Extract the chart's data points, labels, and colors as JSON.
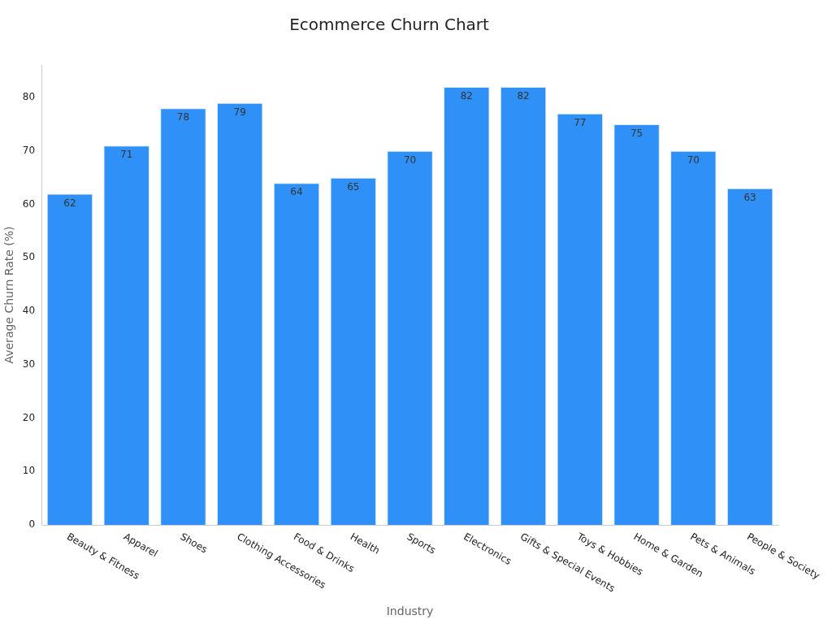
{
  "chart_data": {
    "type": "bar",
    "title": "Ecommerce Churn Chart",
    "xlabel": "Industry",
    "ylabel": "Average Churn Rate (%)",
    "categories": [
      "Beauty & Fitness",
      "Apparel",
      "Shoes",
      "Clothing Accessories",
      "Food & Drinks",
      "Health",
      "Sports",
      "Electronics",
      "Gifts & Special Events",
      "Toys & Hobbies",
      "Home & Garden",
      "Pets & Animals",
      "People & Society"
    ],
    "values": [
      62,
      71,
      78,
      79,
      64,
      65,
      70,
      82,
      82,
      77,
      75,
      70,
      63
    ],
    "color": "#2f91f8",
    "ylim": [
      0,
      86.1
    ],
    "yticks": [
      0,
      10,
      20,
      30,
      40,
      50,
      60,
      70,
      80
    ],
    "data_labels": true,
    "grid": false,
    "legend": false
  }
}
